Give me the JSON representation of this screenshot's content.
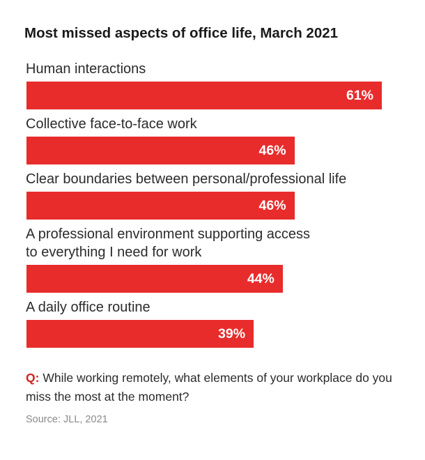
{
  "title": "Most missed aspects of office life, March 2021",
  "question": {
    "prefix": "Q:",
    "text": "While working remotely, what elements of your workplace do you miss the most at the moment?"
  },
  "source": "Source: JLL, 2021",
  "colors": {
    "bar": "#e82c2c",
    "question_prefix": "#d62020"
  },
  "chart_data": {
    "type": "bar",
    "orientation": "horizontal",
    "title": "Most missed aspects of office life, March 2021",
    "categories": [
      [
        "Human interactions"
      ],
      [
        "Collective face-to-face work"
      ],
      [
        "Clear boundaries between personal/professional life"
      ],
      [
        "A professional environment supporting access",
        "to everything I need for work"
      ],
      [
        "A daily office routine"
      ]
    ],
    "values": [
      61,
      46,
      46,
      44,
      39
    ],
    "value_labels": [
      "61%",
      "46%",
      "46%",
      "44%",
      "39%"
    ],
    "unit": "%",
    "xlim": [
      0,
      61
    ],
    "grid": false,
    "legend": "none"
  }
}
